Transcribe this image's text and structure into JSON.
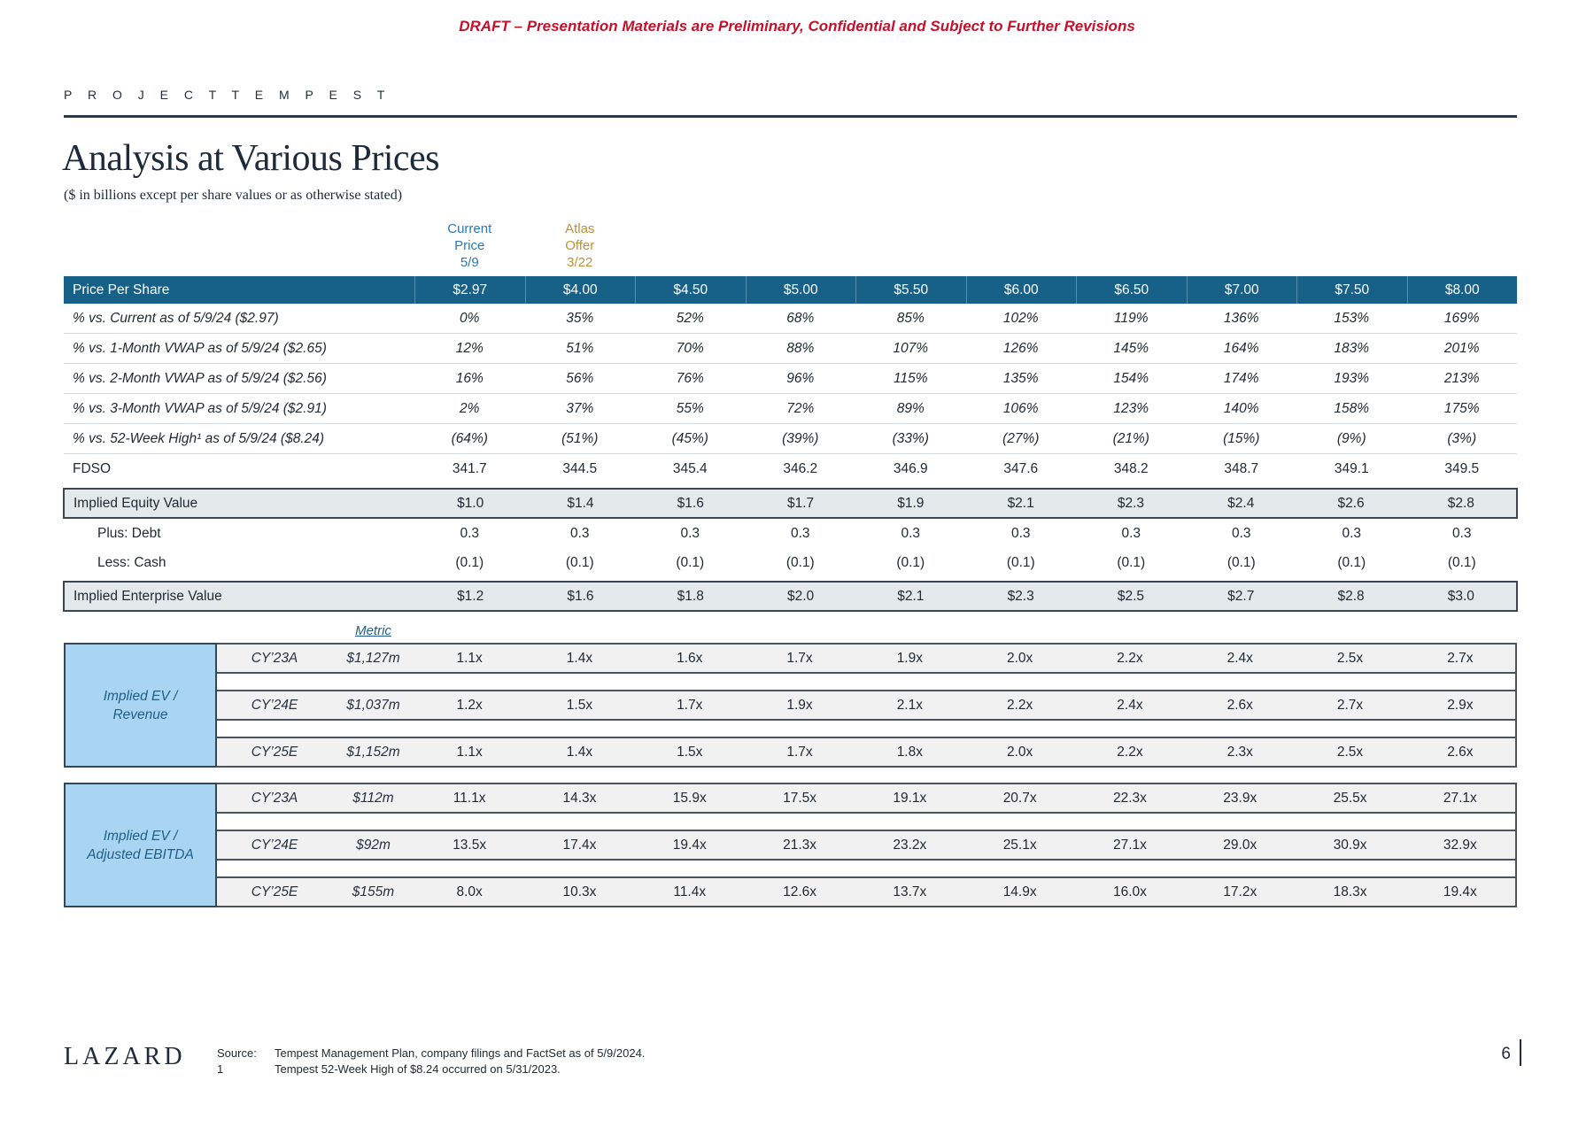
{
  "draft_banner": "DRAFT – Presentation Materials are Preliminary, Confidential and Subject to Further Revisions",
  "project_label": "P R O J E C T   T E M P E S T",
  "title": "Analysis at Various Prices",
  "subtitle": "($ in billions except per share values or as otherwise stated)",
  "column_annotations": {
    "current": {
      "lines": [
        "Current",
        "Price",
        "5/9"
      ]
    },
    "atlas": {
      "lines": [
        "Atlas",
        "Offer",
        "3/22"
      ]
    }
  },
  "price_table": {
    "header_label": "Price Per Share",
    "prices": [
      "$2.97",
      "$4.00",
      "$4.50",
      "$5.00",
      "$5.50",
      "$6.00",
      "$6.50",
      "$7.00",
      "$7.50",
      "$8.00"
    ],
    "rows": [
      {
        "label": "% vs. Current as of 5/9/24 ($2.97)",
        "values": [
          "0%",
          "35%",
          "52%",
          "68%",
          "85%",
          "102%",
          "119%",
          "136%",
          "153%",
          "169%"
        ]
      },
      {
        "label": "% vs. 1-Month VWAP as of 5/9/24 ($2.65)",
        "values": [
          "12%",
          "51%",
          "70%",
          "88%",
          "107%",
          "126%",
          "145%",
          "164%",
          "183%",
          "201%"
        ]
      },
      {
        "label": "% vs. 2-Month VWAP as of 5/9/24 ($2.56)",
        "values": [
          "16%",
          "56%",
          "76%",
          "96%",
          "115%",
          "135%",
          "154%",
          "174%",
          "193%",
          "213%"
        ]
      },
      {
        "label": "% vs. 3-Month VWAP as of 5/9/24 ($2.91)",
        "values": [
          "2%",
          "37%",
          "55%",
          "72%",
          "89%",
          "106%",
          "123%",
          "140%",
          "158%",
          "175%"
        ]
      },
      {
        "label": "% vs. 52-Week High¹ as of 5/9/24 ($8.24)",
        "values": [
          "(64%)",
          "(51%)",
          "(45%)",
          "(39%)",
          "(33%)",
          "(27%)",
          "(21%)",
          "(15%)",
          "(9%)",
          "(3%)"
        ]
      },
      {
        "label": "FDSO",
        "values": [
          "341.7",
          "344.5",
          "345.4",
          "346.2",
          "346.9",
          "347.6",
          "348.2",
          "348.7",
          "349.1",
          "349.5"
        ]
      },
      {
        "label": "Implied Equity Value",
        "values": [
          "$1.0",
          "$1.4",
          "$1.6",
          "$1.7",
          "$1.9",
          "$2.1",
          "$2.3",
          "$2.4",
          "$2.6",
          "$2.8"
        ]
      },
      {
        "label": "Plus: Debt",
        "values": [
          "0.3",
          "0.3",
          "0.3",
          "0.3",
          "0.3",
          "0.3",
          "0.3",
          "0.3",
          "0.3",
          "0.3"
        ]
      },
      {
        "label": "Less: Cash",
        "values": [
          "(0.1)",
          "(0.1)",
          "(0.1)",
          "(0.1)",
          "(0.1)",
          "(0.1)",
          "(0.1)",
          "(0.1)",
          "(0.1)",
          "(0.1)"
        ]
      },
      {
        "label": "Implied Enterprise Value",
        "values": [
          "$1.2",
          "$1.6",
          "$1.8",
          "$2.0",
          "$2.1",
          "$2.3",
          "$2.5",
          "$2.7",
          "$2.8",
          "$3.0"
        ]
      }
    ]
  },
  "metric_header": "Metric",
  "metric_blocks": [
    {
      "label_line1": "Implied EV /",
      "label_line2": "Revenue",
      "rows": [
        {
          "period": "CY’23A",
          "metric": "$1,127m",
          "values": [
            "1.1x",
            "1.4x",
            "1.6x",
            "1.7x",
            "1.9x",
            "2.0x",
            "2.2x",
            "2.4x",
            "2.5x",
            "2.7x"
          ]
        },
        {
          "period": "CY’24E",
          "metric": "$1,037m",
          "values": [
            "1.2x",
            "1.5x",
            "1.7x",
            "1.9x",
            "2.1x",
            "2.2x",
            "2.4x",
            "2.6x",
            "2.7x",
            "2.9x"
          ]
        },
        {
          "period": "CY’25E",
          "metric": "$1,152m",
          "values": [
            "1.1x",
            "1.4x",
            "1.5x",
            "1.7x",
            "1.8x",
            "2.0x",
            "2.2x",
            "2.3x",
            "2.5x",
            "2.6x"
          ]
        }
      ]
    },
    {
      "label_line1": "Implied EV /",
      "label_line2": "Adjusted EBITDA",
      "rows": [
        {
          "period": "CY’23A",
          "metric": "$112m",
          "values": [
            "11.1x",
            "14.3x",
            "15.9x",
            "17.5x",
            "19.1x",
            "20.7x",
            "22.3x",
            "23.9x",
            "25.5x",
            "27.1x"
          ]
        },
        {
          "period": "CY’24E",
          "metric": "$92m",
          "values": [
            "13.5x",
            "17.4x",
            "19.4x",
            "21.3x",
            "23.2x",
            "25.1x",
            "27.1x",
            "29.0x",
            "30.9x",
            "32.9x"
          ]
        },
        {
          "period": "CY’25E",
          "metric": "$155m",
          "values": [
            "8.0x",
            "10.3x",
            "11.4x",
            "12.6x",
            "13.7x",
            "14.9x",
            "16.0x",
            "17.2x",
            "18.3x",
            "19.4x"
          ]
        }
      ]
    }
  ],
  "footer": {
    "logo": "LAZARD",
    "source_label": "Source:",
    "source_text": "Tempest Management Plan, company filings and FactSet as of 5/9/2024.",
    "footnote_label": "1",
    "footnote_text": "Tempest 52-Week High of $8.24 occurred on 5/31/2023.",
    "page_number": "6"
  },
  "colors": {
    "header_bar_blue": "#176189",
    "band_fill": "#E4E9EC",
    "metric_row_fill": "#F1F1F1",
    "metric_label_box_fill": "#A9D5F3",
    "current_price_blue": "#2878B8",
    "atlas_offer_gold": "#BE9136",
    "draft_red": "#C3112B",
    "dark_navy": "#1C2A3A"
  }
}
